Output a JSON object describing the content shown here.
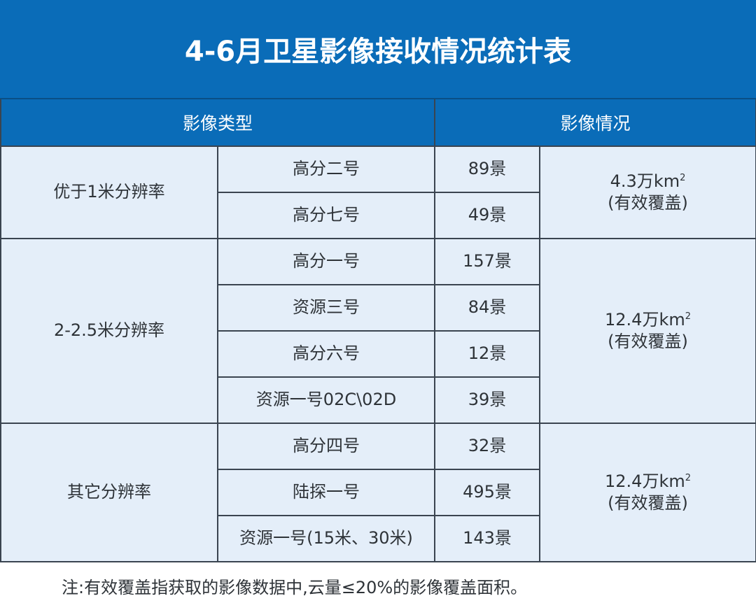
{
  "title": "4-6月卫星影像接收情况统计表",
  "headers": [
    "影像类型",
    "影像情况"
  ],
  "groups": [
    {
      "category": "优于1米分辨率",
      "coverage": "4.3万km",
      "coverage_sup": "2",
      "coverage_note": "(有效覆盖)",
      "rows": [
        {
          "satellite": "高分二号",
          "count": "89景"
        },
        {
          "satellite": "高分七号",
          "count": "49景"
        }
      ]
    },
    {
      "category": "2-2.5米分辨率",
      "coverage": "12.4万km",
      "coverage_sup": "2",
      "coverage_note": "(有效覆盖)",
      "rows": [
        {
          "satellite": "高分一号",
          "count": "157景"
        },
        {
          "satellite": "资源三号",
          "count": "84景"
        },
        {
          "satellite": "高分六号",
          "count": "12景"
        },
        {
          "satellite": "资源一号02C\\02D",
          "count": "39景"
        }
      ]
    },
    {
      "category": "其它分辨率",
      "coverage": "12.4万km",
      "coverage_sup": "2",
      "coverage_note": "(有效覆盖)",
      "rows": [
        {
          "satellite": "高分四号",
          "count": "32景"
        },
        {
          "satellite": "陆探一号",
          "count": "495景"
        },
        {
          "satellite": "资源一号(15米、30米)",
          "count": "143景"
        }
      ]
    }
  ],
  "note": "注:有效覆盖指获取的影像数据中,云量≤20%的影像覆盖面积。",
  "colors": {
    "header_blue": "#0a6cb8",
    "cell_bg": "#e4eef9",
    "border": "#3a4450"
  }
}
